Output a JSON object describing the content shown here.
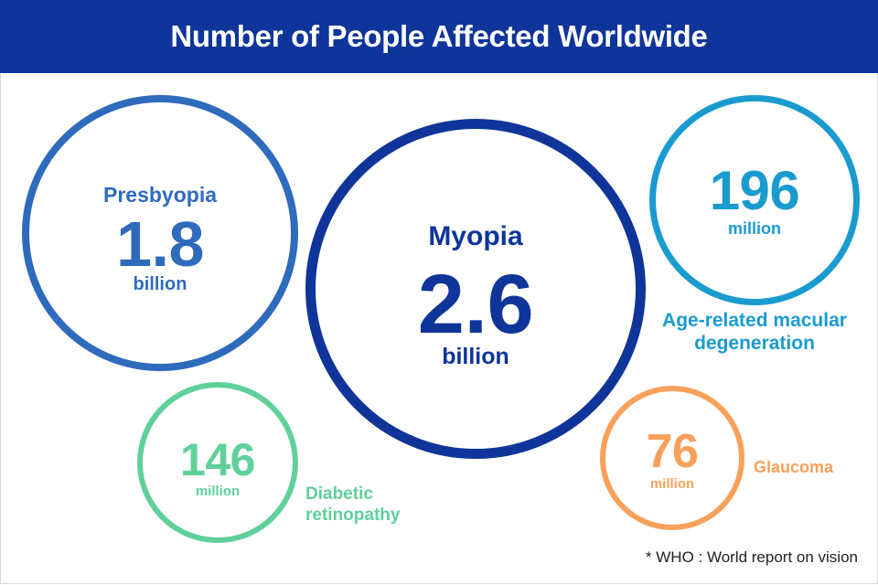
{
  "title": "Number of People Affected Worldwide",
  "footnote": "* WHO : World report on vision",
  "colors": {
    "header": "#0f359a",
    "presbyopia": "#2f6bbd",
    "myopia": "#0f359a",
    "amd": "#1a9bcf",
    "diabetic_retinopathy": "#5fd09a",
    "glaucoma": "#f9a05a"
  },
  "bubbles": {
    "presbyopia": {
      "label": "Presbyopia",
      "value": "1.8",
      "unit": "billion"
    },
    "myopia": {
      "label": "Myopia",
      "value": "2.6",
      "unit": "billion"
    },
    "amd": {
      "label": "Age-related macular degeneration",
      "value": "196",
      "unit": "million"
    },
    "diabetic_retinopathy": {
      "label": "Diabetic retinopathy",
      "value": "146",
      "unit": "million"
    },
    "glaucoma": {
      "label": "Glaucoma",
      "value": "76",
      "unit": "million"
    }
  },
  "chart_data": {
    "type": "bubble",
    "title": "Number of People Affected Worldwide",
    "unit_note": "values in millions",
    "categories": [
      "Presbyopia",
      "Myopia",
      "Age-related macular degeneration",
      "Diabetic retinopathy",
      "Glaucoma"
    ],
    "values": [
      1800,
      2600,
      196,
      146,
      76
    ],
    "source": "* WHO : World report on vision"
  }
}
